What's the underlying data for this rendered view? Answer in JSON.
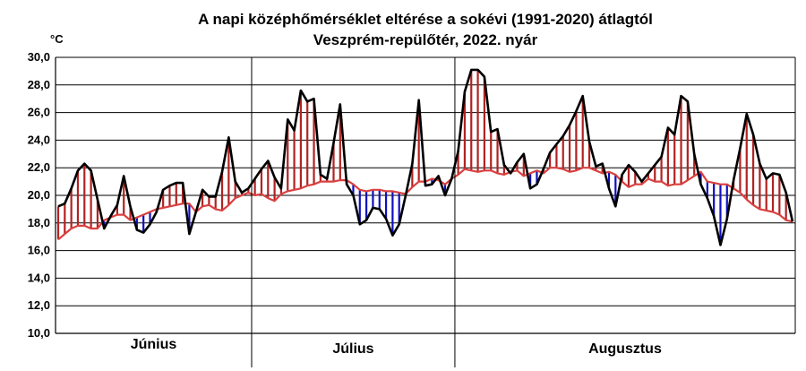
{
  "chart_data": {
    "type": "line",
    "title": "A napi középhőmérséklet eltérése a sokévi (1991-2020) átlagtól",
    "subtitle": "Veszprém-repülőtér, 2022. nyár",
    "ylabel": "°C",
    "ylim": [
      10,
      30
    ],
    "yticks": [
      "10,0",
      "12,0",
      "14,0",
      "16,0",
      "18,0",
      "20,0",
      "22,0",
      "24,0",
      "26,0",
      "28,0",
      "30,0"
    ],
    "months": [
      "Június",
      "Július",
      "Augusztus"
    ],
    "grid": true,
    "colors": {
      "daily": "#000000",
      "normal": "#d94040",
      "above": "#b22222",
      "below": "#1010c0",
      "grid": "#000000"
    },
    "series": [
      {
        "values": [
          19.2,
          19.4,
          20.5,
          21.8,
          22.3,
          21.8,
          19.7,
          17.6,
          18.5,
          19.3,
          21.4,
          19.2,
          17.5,
          17.3,
          17.9,
          18.8,
          20.4,
          20.7,
          20.9,
          20.9,
          17.2,
          18.8,
          20.4,
          19.9,
          19.9,
          21.7,
          24.2,
          21.0,
          20.2,
          20.5,
          21.2,
          21.9,
          22.5,
          21.3,
          20.5,
          25.5,
          24.7,
          27.6,
          26.8,
          27.0,
          21.5,
          21.2,
          23.8,
          26.6,
          20.8,
          20.0,
          17.9,
          18.2,
          19.1,
          19.0,
          18.3,
          17.1,
          17.9,
          20.0,
          22.3,
          26.9,
          20.7,
          20.8,
          21.4,
          20.0,
          21.2,
          23.2,
          27.5,
          29.1,
          29.1,
          28.6,
          24.6,
          24.8,
          22.2,
          21.6,
          22.4,
          23.0,
          20.5,
          20.8,
          21.9,
          23.1,
          23.7,
          24.3,
          25.1,
          26.1,
          27.2,
          23.9,
          22.1,
          22.3,
          20.5,
          19.2,
          21.5,
          22.2,
          21.7,
          21.0,
          21.6,
          22.2,
          22.8,
          24.9,
          24.4,
          27.2,
          26.8,
          23.0,
          20.8,
          19.8,
          18.5,
          16.4,
          18.3,
          21.1,
          23.4,
          25.9,
          24.4,
          22.3,
          21.2,
          21.6,
          21.5,
          20.2,
          18.1
        ]
      },
      {
        "values": [
          16.8,
          17.2,
          17.6,
          17.8,
          17.8,
          17.6,
          17.6,
          18.2,
          18.4,
          18.6,
          18.6,
          18.2,
          18.4,
          18.6,
          18.8,
          19.0,
          19.1,
          19.2,
          19.3,
          19.4,
          19.4,
          18.8,
          19.2,
          19.3,
          19.0,
          18.9,
          19.3,
          19.8,
          20.0,
          20.2,
          20.0,
          20.1,
          19.8,
          19.6,
          20.1,
          20.3,
          20.4,
          20.5,
          20.7,
          20.8,
          21.0,
          21.0,
          21.0,
          21.1,
          21.1,
          20.8,
          20.4,
          20.3,
          20.4,
          20.4,
          20.3,
          20.3,
          20.2,
          20.1,
          20.6,
          21.0,
          21.0,
          21.2,
          21.1,
          20.8,
          21.2,
          21.5,
          21.9,
          21.8,
          21.7,
          21.8,
          21.8,
          21.6,
          21.5,
          21.7,
          21.8,
          21.4,
          21.6,
          21.8,
          21.6,
          22.0,
          22.0,
          21.9,
          21.7,
          21.8,
          22.0,
          22.0,
          21.8,
          21.6,
          21.7,
          21.5,
          21.0,
          20.6,
          20.8,
          20.8,
          21.2,
          21.0,
          21.0,
          20.7,
          20.8,
          20.8,
          21.1,
          21.4,
          21.7,
          21.0,
          20.9,
          20.8,
          20.8,
          20.5,
          20.2,
          19.7,
          19.3,
          19.0,
          18.9,
          18.8,
          18.6,
          18.2,
          18.1
        ]
      }
    ]
  }
}
